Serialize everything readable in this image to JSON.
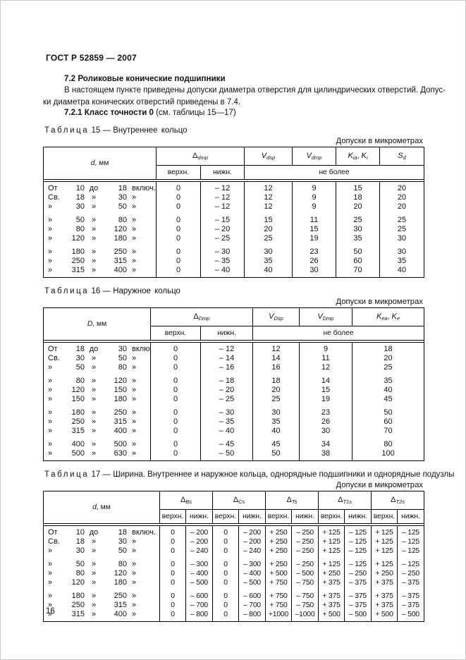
{
  "page": {
    "header": "ГОСТ Р 52859 — 2007",
    "page_number": "16"
  },
  "section": {
    "title": "7.2  Роликовые конические подшипники",
    "para_lines": [
      "В настоящем пункте приведены допуски диаметра отверстия для цилиндрических отверстий. Допус-",
      "ки диаметра конических отверстий приведены в 7.4."
    ],
    "subsection_bold": "7.2.1 Класс точности 0",
    "subsection_rest": " (см. таблицы 15—17)"
  },
  "labels": {
    "verh": "верхн.",
    "nizh": "нижн.",
    "ne_bolee": "не более",
    "caption_dash": " — "
  },
  "tables": [
    {
      "caption_word": "Таблица",
      "caption_number": "15",
      "caption_title": "Внутреннее кольцо",
      "units": "Допуски в микрометрах",
      "dim": {
        "base": "d",
        "rest": ", мм"
      },
      "sym_delta": {
        "base": "Δ",
        "sub": "dmp"
      },
      "sym_v1": {
        "base": "V",
        "sub": "dsp"
      },
      "sym_v2": {
        "base": "V",
        "sub": "dmp"
      },
      "sym_k": {
        "b1": "K",
        "s1": "ia",
        "sep": ", ",
        "b2": "K",
        "s2": "i"
      },
      "sym_s": {
        "base": "S",
        "sub": "d"
      },
      "rows": [
        {
          "r": [
            "От",
            "10",
            "до",
            "18",
            "включ."
          ],
          "v": [
            "0",
            "– 12",
            "12",
            "9",
            "15",
            "20"
          ],
          "gap": false
        },
        {
          "r": [
            "Св.",
            "18",
            "»",
            "30",
            "»"
          ],
          "v": [
            "0",
            "– 12",
            "12",
            "9",
            "18",
            "20"
          ],
          "gap": false
        },
        {
          "r": [
            "»",
            "30",
            "»",
            "50",
            "»"
          ],
          "v": [
            "0",
            "– 12",
            "12",
            "9",
            "20",
            "20"
          ],
          "gap": false
        },
        {
          "r": [
            "»",
            "50",
            "»",
            "80",
            "»"
          ],
          "v": [
            "0",
            "– 15",
            "15",
            "11",
            "25",
            "25"
          ],
          "gap": true
        },
        {
          "r": [
            "»",
            "80",
            "»",
            "120",
            "»"
          ],
          "v": [
            "0",
            "– 20",
            "20",
            "15",
            "30",
            "25"
          ],
          "gap": false
        },
        {
          "r": [
            "»",
            "120",
            "»",
            "180",
            "»"
          ],
          "v": [
            "0",
            "– 25",
            "25",
            "19",
            "35",
            "30"
          ],
          "gap": false
        },
        {
          "r": [
            "»",
            "180",
            "»",
            "250",
            "»"
          ],
          "v": [
            "0",
            "– 30",
            "30",
            "23",
            "50",
            "30"
          ],
          "gap": true
        },
        {
          "r": [
            "»",
            "250",
            "»",
            "315",
            "»"
          ],
          "v": [
            "0",
            "– 35",
            "35",
            "26",
            "60",
            "35"
          ],
          "gap": false
        },
        {
          "r": [
            "»",
            "315",
            "»",
            "400",
            "»"
          ],
          "v": [
            "0",
            "– 40",
            "40",
            "30",
            "70",
            "40"
          ],
          "gap": false
        }
      ]
    },
    {
      "caption_word": "Таблица",
      "caption_number": "16",
      "caption_title": "Наружное кольцо",
      "units": "Допуски в микрометрах",
      "dim": {
        "base": "D",
        "rest": ", мм"
      },
      "sym_delta": {
        "base": "Δ",
        "sub": "Dmp"
      },
      "sym_v1": {
        "base": "V",
        "sub": "Dsp"
      },
      "sym_v2": {
        "base": "V",
        "sub": "Dmp"
      },
      "sym_k": {
        "b1": "K",
        "s1": "ea",
        "sep": ", ",
        "b2": "K",
        "s2": "e"
      },
      "rows": [
        {
          "r": [
            "От",
            "18",
            "до",
            "30",
            "включ."
          ],
          "v": [
            "0",
            "– 12",
            "12",
            "9",
            "18"
          ],
          "gap": false
        },
        {
          "r": [
            "Св.",
            "30",
            "»",
            "50",
            "»"
          ],
          "v": [
            "0",
            "– 14",
            "14",
            "11",
            "20"
          ],
          "gap": false
        },
        {
          "r": [
            "»",
            "50",
            "»",
            "80",
            "»"
          ],
          "v": [
            "0",
            "– 16",
            "16",
            "12",
            "25"
          ],
          "gap": false
        },
        {
          "r": [
            "»",
            "80",
            "»",
            "120",
            "»"
          ],
          "v": [
            "0",
            "– 18",
            "18",
            "14",
            "35"
          ],
          "gap": true
        },
        {
          "r": [
            "»",
            "120",
            "»",
            "150",
            "»"
          ],
          "v": [
            "0",
            "– 20",
            "20",
            "15",
            "40"
          ],
          "gap": false
        },
        {
          "r": [
            "»",
            "150",
            "»",
            "180",
            "»"
          ],
          "v": [
            "0",
            "– 25",
            "25",
            "19",
            "45"
          ],
          "gap": false
        },
        {
          "r": [
            "»",
            "180",
            "»",
            "250",
            "»"
          ],
          "v": [
            "0",
            "– 30",
            "30",
            "23",
            "50"
          ],
          "gap": true
        },
        {
          "r": [
            "»",
            "250",
            "»",
            "315",
            "»"
          ],
          "v": [
            "0",
            "– 35",
            "35",
            "26",
            "60"
          ],
          "gap": false
        },
        {
          "r": [
            "»",
            "315",
            "»",
            "400",
            "»"
          ],
          "v": [
            "0",
            "– 40",
            "40",
            "30",
            "70"
          ],
          "gap": false
        },
        {
          "r": [
            "»",
            "400",
            "»",
            "500",
            "»"
          ],
          "v": [
            "0",
            "– 45",
            "45",
            "34",
            "80"
          ],
          "gap": true
        },
        {
          "r": [
            "»",
            "500",
            "»",
            "630",
            "»"
          ],
          "v": [
            "0",
            "– 50",
            "50",
            "38",
            "100"
          ],
          "gap": false
        }
      ]
    },
    {
      "caption_word": "Таблица",
      "caption_number": "17",
      "caption_title": "Ширина. Внутреннее и наружное кольца, однорядные подшипники и однорядные подузлы",
      "units": "Допуски в микрометрах",
      "dim": {
        "base": "d",
        "rest": ", мм"
      },
      "sym_b": {
        "base": "Δ",
        "sub": "Bs"
      },
      "sym_c": {
        "base": "Δ",
        "sub": "Cs"
      },
      "sym_t": {
        "base": "Δ",
        "sub": "Ts"
      },
      "sym_t1": {
        "base": "Δ",
        "sub": "T1s"
      },
      "sym_t2": {
        "base": "Δ",
        "sub": "T2s"
      },
      "rows": [
        {
          "r": [
            "От",
            "10",
            "до",
            "18",
            "включ."
          ],
          "v": [
            "0",
            "– 200",
            "0",
            "– 200",
            "+ 250",
            "– 250",
            "+ 125",
            "– 125",
            "+ 125",
            "– 125"
          ],
          "gap": false
        },
        {
          "r": [
            "Св.",
            "18",
            "»",
            "30",
            "»"
          ],
          "v": [
            "0",
            "– 200",
            "0",
            "– 200",
            "+ 250",
            "– 250",
            "+ 125",
            "– 125",
            "+ 125",
            "– 125"
          ],
          "gap": false
        },
        {
          "r": [
            "»",
            "30",
            "»",
            "50",
            "»"
          ],
          "v": [
            "0",
            "– 240",
            "0",
            "– 240",
            "+ 250",
            "– 250",
            "+ 125",
            "– 125",
            "+ 125",
            "– 125"
          ],
          "gap": false
        },
        {
          "r": [
            "»",
            "50",
            "»",
            "80",
            "»"
          ],
          "v": [
            "0",
            "– 300",
            "0",
            "– 300",
            "+ 250",
            "– 250",
            "+ 125",
            "– 125",
            "+ 125",
            "– 125"
          ],
          "gap": true
        },
        {
          "r": [
            "»",
            "80",
            "»",
            "120",
            "»"
          ],
          "v": [
            "0",
            "– 400",
            "0",
            "– 400",
            "+ 500",
            "– 500",
            "+ 250",
            "– 250",
            "+ 250",
            "– 250"
          ],
          "gap": false
        },
        {
          "r": [
            "»",
            "120",
            "»",
            "180",
            "»"
          ],
          "v": [
            "0",
            "– 500",
            "0",
            "– 500",
            "+ 750",
            "– 750",
            "+ 375",
            "– 375",
            "+ 375",
            "– 375"
          ],
          "gap": false
        },
        {
          "r": [
            "»",
            "180",
            "»",
            "250",
            "»"
          ],
          "v": [
            "0",
            "– 600",
            "0",
            "– 600",
            "+ 750",
            "– 750",
            "+ 375",
            "– 375",
            "+ 375",
            "– 375"
          ],
          "gap": true
        },
        {
          "r": [
            "»",
            "250",
            "»",
            "315",
            "»"
          ],
          "v": [
            "0",
            "– 700",
            "0",
            "– 700",
            "+ 750",
            "– 750",
            "+ 375",
            "– 375",
            "+ 375",
            "– 375"
          ],
          "gap": false
        },
        {
          "r": [
            "»",
            "315",
            "»",
            "400",
            "»"
          ],
          "v": [
            "0",
            "– 800",
            "0",
            "– 800",
            "+1000",
            "–1000",
            "+ 500",
            "– 500",
            "+ 500",
            "– 500"
          ],
          "gap": false
        }
      ]
    }
  ]
}
